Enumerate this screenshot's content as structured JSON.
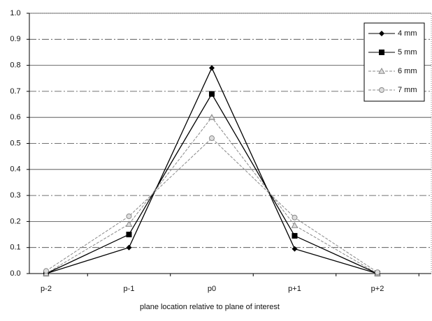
{
  "chart_data": {
    "type": "line",
    "xlabel": "plane location relative to plane of interest",
    "categories": [
      "p-2",
      "p-1",
      "p0",
      "p+1",
      "p+2"
    ],
    "series": [
      {
        "name": "4 mm",
        "color": "#000000",
        "marker": "diamond",
        "dashed": false,
        "values": [
          0.0,
          0.1,
          0.79,
          0.095,
          0.0
        ]
      },
      {
        "name": "5 mm",
        "color": "#000000",
        "marker": "square",
        "dashed": false,
        "values": [
          0.0,
          0.15,
          0.69,
          0.145,
          0.0
        ]
      },
      {
        "name": "6 mm",
        "color": "#888888",
        "marker": "triangle",
        "dashed": true,
        "values": [
          0.0,
          0.19,
          0.6,
          0.185,
          0.0
        ]
      },
      {
        "name": "7 mm",
        "color": "#888888",
        "marker": "circle",
        "dashed": true,
        "values": [
          0.01,
          0.22,
          0.52,
          0.215,
          0.005
        ]
      }
    ],
    "ylim": [
      0,
      1
    ],
    "yticks": [
      {
        "value": 0,
        "label": "0.0"
      },
      0.1,
      0.2,
      0.3,
      0.4,
      0.5,
      0.6,
      0.7,
      0.8,
      0.9,
      {
        "value": 1,
        "label": "1.0"
      }
    ],
    "grid": true,
    "legend": "upper right"
  }
}
